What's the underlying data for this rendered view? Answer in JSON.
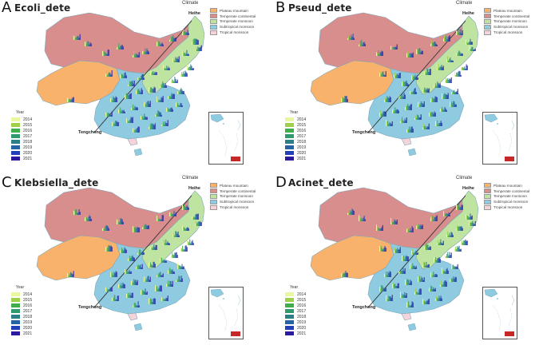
{
  "panels": [
    {
      "label": "A",
      "title": "Ecoli_dete"
    },
    {
      "label": "B",
      "title": "Pseud_dete"
    },
    {
      "label": "C",
      "title": "Klebsiella_dete"
    },
    {
      "label": "D",
      "title": "Acinet_dete"
    }
  ],
  "climate_legend": {
    "title": "Climate",
    "items": [
      {
        "name": "Plateau mountain",
        "color": "#f9b26b"
      },
      {
        "name": "Temperate continental",
        "color": "#d98e8e"
      },
      {
        "name": "Temperate monsoon",
        "color": "#bfe3a1"
      },
      {
        "name": "Subtropical monsoon",
        "color": "#8ecae0"
      },
      {
        "name": "Tropical monsoon",
        "color": "#f5d3d9"
      }
    ]
  },
  "year_legend": {
    "title": "Year",
    "items": [
      {
        "year": "2014",
        "color": "#e8f7a0"
      },
      {
        "year": "2015",
        "color": "#9ed04a"
      },
      {
        "year": "2016",
        "color": "#3fae4b"
      },
      {
        "year": "2017",
        "color": "#2f9a6e"
      },
      {
        "year": "2018",
        "color": "#2b7f86"
      },
      {
        "year": "2019",
        "color": "#2663a3"
      },
      {
        "year": "2020",
        "color": "#2241b8"
      },
      {
        "year": "2021",
        "color": "#2a1a9e"
      }
    ]
  },
  "cities": {
    "north": "Heihe",
    "south": "Tengchong"
  }
}
